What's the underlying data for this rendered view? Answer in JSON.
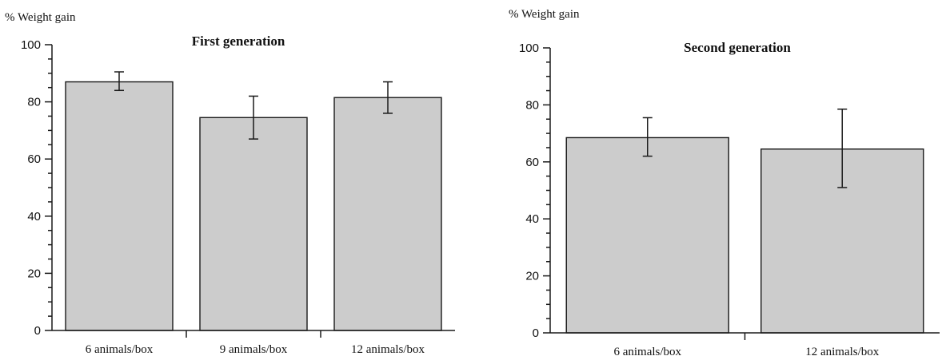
{
  "chart_data": [
    {
      "type": "bar",
      "title": "First generation",
      "ylabel": "% Weight gain",
      "xlabel": "",
      "ylim": [
        0,
        100
      ],
      "yticks": [
        0,
        20,
        40,
        60,
        80,
        100
      ],
      "grid": false,
      "categories": [
        "6 animals/box",
        "9 animals/box",
        "12 animals/box"
      ],
      "values": [
        87,
        74.5,
        81.5
      ],
      "error_low": [
        84,
        67,
        76
      ],
      "error_high": [
        90.5,
        82,
        87
      ]
    },
    {
      "type": "bar",
      "title": "Second generation",
      "ylabel": "% Weight gain",
      "xlabel": "",
      "ylim": [
        0,
        100
      ],
      "yticks": [
        0,
        20,
        40,
        60,
        80,
        100
      ],
      "grid": false,
      "categories": [
        "6 animals/box",
        "12 animals/box"
      ],
      "values": [
        68.5,
        64.5
      ],
      "error_low": [
        62,
        51
      ],
      "error_high": [
        75.5,
        78.5
      ]
    }
  ]
}
